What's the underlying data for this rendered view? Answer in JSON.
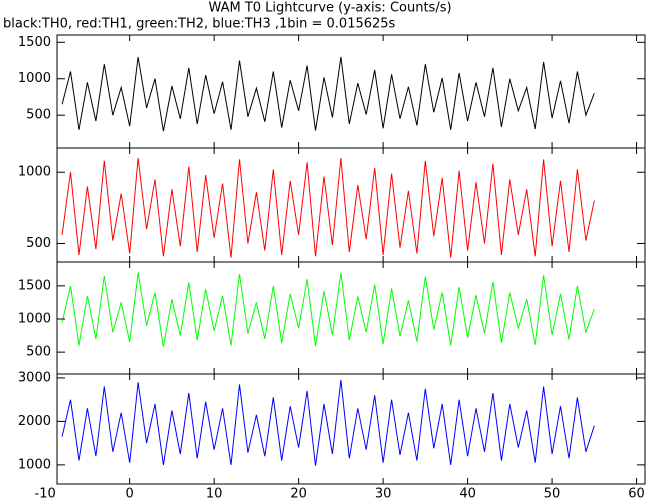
{
  "chart_data": {
    "type": "line",
    "title": "WAM T0 Lightcurve (y-axis: Counts/s)",
    "subtitle": "black:TH0, red:TH1, green:TH2, blue:TH3 ,1bin = 0.015625s",
    "x": [
      -8,
      -7,
      -6,
      -5,
      -4,
      -3,
      -2,
      -1,
      0,
      1,
      2,
      3,
      4,
      5,
      6,
      7,
      8,
      9,
      10,
      11,
      12,
      13,
      14,
      15,
      16,
      17,
      18,
      19,
      20,
      21,
      22,
      23,
      24,
      25,
      26,
      27,
      28,
      29,
      30,
      31,
      32,
      33,
      34,
      35,
      36,
      37,
      38,
      39,
      40,
      41,
      42,
      43,
      44,
      45,
      46,
      47,
      48,
      49,
      50,
      51,
      52,
      53,
      54,
      55
    ],
    "xlim": [
      -8.6,
      61
    ],
    "xticks": [
      -10,
      0,
      10,
      20,
      30,
      40,
      50,
      60
    ],
    "panels": [
      {
        "color": "#000000",
        "ylim": [
          50,
          1600
        ],
        "yticks": [
          500,
          1000,
          1500
        ],
        "values": [
          650,
          1100,
          300,
          950,
          420,
          1200,
          500,
          880,
          350,
          1300,
          600,
          1000,
          280,
          900,
          450,
          1150,
          380,
          1050,
          520,
          960,
          300,
          1250,
          480,
          870,
          410,
          1100,
          330,
          980,
          560,
          1180,
          290,
          1020,
          470,
          1300,
          380,
          940,
          510,
          1120,
          320,
          1060,
          450,
          890,
          360,
          1200,
          540,
          1010,
          300,
          1080,
          420,
          950,
          480,
          1150,
          340,
          1000,
          560,
          880,
          310,
          1230,
          460,
          970,
          390,
          1100,
          500,
          800
        ]
      },
      {
        "color": "#ff0000",
        "ylim": [
          370,
          1170
        ],
        "yticks": [
          500,
          1000
        ],
        "values": [
          560,
          1000,
          420,
          900,
          460,
          1080,
          520,
          850,
          430,
          1100,
          600,
          950,
          410,
          880,
          480,
          1040,
          440,
          980,
          540,
          920,
          400,
          1090,
          500,
          860,
          450,
          1020,
          420,
          940,
          560,
          1070,
          410,
          970,
          490,
          1100,
          440,
          910,
          530,
          1030,
          420,
          990,
          470,
          870,
          430,
          1080,
          550,
          960,
          400,
          1010,
          450,
          930,
          500,
          1060,
          420,
          950,
          560,
          880,
          410,
          1090,
          480,
          940,
          440,
          1020,
          520,
          800
        ]
      },
      {
        "color": "#00ff00",
        "ylim": [
          170,
          1860
        ],
        "yticks": [
          500,
          1000,
          1500
        ],
        "values": [
          950,
          1500,
          600,
          1350,
          700,
          1650,
          800,
          1250,
          650,
          1700,
          900,
          1400,
          580,
          1300,
          750,
          1550,
          680,
          1450,
          820,
          1350,
          600,
          1680,
          780,
          1250,
          700,
          1500,
          640,
          1380,
          860,
          1600,
          590,
          1420,
          760,
          1700,
          680,
          1340,
          800,
          1520,
          620,
          1460,
          740,
          1280,
          660,
          1640,
          840,
          1400,
          600,
          1480,
          720,
          1360,
          780,
          1560,
          640,
          1400,
          860,
          1300,
          610,
          1660,
          760,
          1380,
          690,
          1500,
          800,
          1150
        ]
      },
      {
        "color": "#0000ff",
        "ylim": [
          560,
          3090
        ],
        "yticks": [
          1000,
          2000,
          3000
        ],
        "values": [
          1650,
          2500,
          1100,
          2300,
          1200,
          2800,
          1300,
          2200,
          1050,
          2900,
          1500,
          2400,
          1000,
          2250,
          1250,
          2650,
          1150,
          2450,
          1350,
          2300,
          1000,
          2850,
          1280,
          2150,
          1200,
          2550,
          1100,
          2350,
          1400,
          2700,
          980,
          2400,
          1250,
          2950,
          1150,
          2300,
          1350,
          2600,
          1050,
          2500,
          1230,
          2200,
          1100,
          2750,
          1380,
          2400,
          1000,
          2500,
          1200,
          2300,
          1300,
          2650,
          1100,
          2400,
          1400,
          2250,
          1050,
          2800,
          1250,
          2350,
          1150,
          2550,
          1300,
          1900
        ]
      }
    ]
  }
}
